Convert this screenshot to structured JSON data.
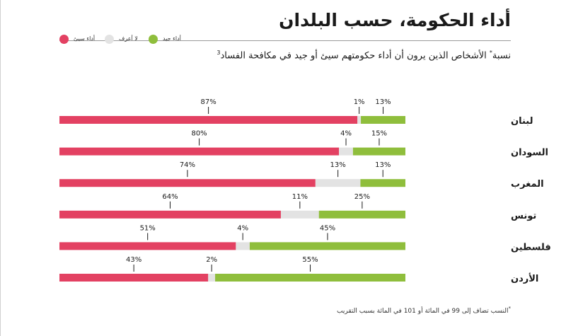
{
  "title": "أداء الحكومة، حسب البلدان",
  "subtitle": "نسبة",
  "subtitle_mark": "*",
  "subtitle_rest": " الأشخاص الذين يرون أن أداء حكومتهم سيئ أو جيد في مكافحة الفساد",
  "subtitle_ref": "3",
  "footnote_mark": "*",
  "footnote": "النسب تضاف إلى 99 في المائة أو 101 في المائة بسبب التقريب",
  "legend": [
    {
      "label": "أداء جيد",
      "color": "#8fbe3c"
    },
    {
      "label": "لا أعرف",
      "color": "#e3e3e3"
    },
    {
      "label": "أداء سيئ",
      "color": "#e34162"
    }
  ],
  "colors": {
    "bad": "#e34162",
    "unknown": "#e3e3e3",
    "good": "#8fbe3c"
  },
  "chart_data": {
    "type": "bar",
    "stacked": true,
    "orientation": "horizontal",
    "categories": [
      "لبنان",
      "السودان",
      "المغرب",
      "تونس",
      "فلسطين",
      "الأردن"
    ],
    "series": [
      {
        "name": "أداء سيئ",
        "values": [
          87,
          80,
          74,
          64,
          51,
          43
        ]
      },
      {
        "name": "لا أعرف",
        "values": [
          1,
          4,
          13,
          11,
          4,
          2
        ]
      },
      {
        "name": "أداء جيد",
        "values": [
          13,
          15,
          13,
          25,
          45,
          55
        ]
      }
    ],
    "labels": [
      [
        "87%",
        "1%",
        "13%"
      ],
      [
        "80%",
        "4%",
        "15%"
      ],
      [
        "74%",
        "13%",
        "13%"
      ],
      [
        "64%",
        "11%",
        "25%"
      ],
      [
        "51%",
        "4%",
        "45%"
      ],
      [
        "43%",
        "2%",
        "55%"
      ]
    ],
    "legend_position": "top-left"
  }
}
